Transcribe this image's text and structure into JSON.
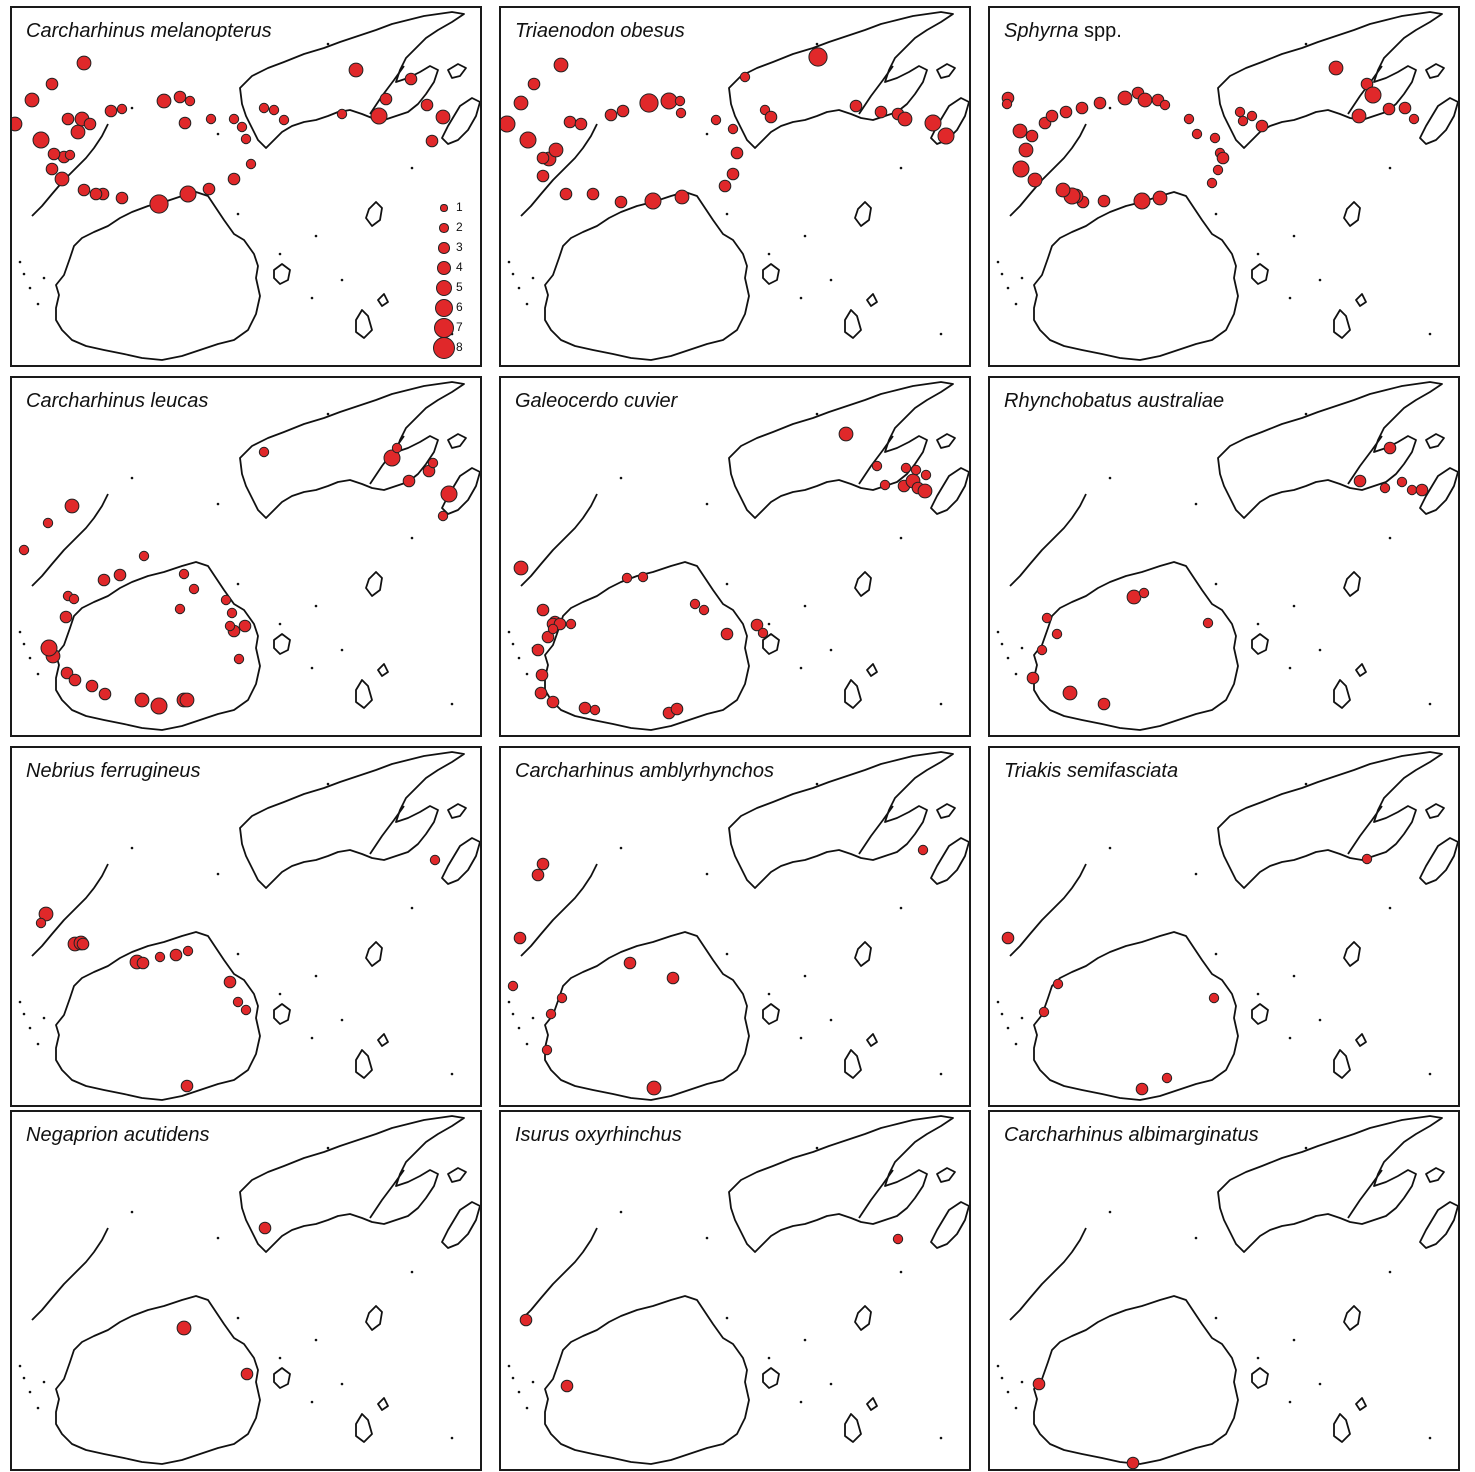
{
  "colors": {
    "dot_fill": "#e0282a",
    "dot_stroke": "#222222",
    "outline": "#111111",
    "frame": "#1a1a1a"
  },
  "legend": {
    "labels": [
      "1",
      "2",
      "3",
      "4",
      "5",
      "6",
      "7",
      "8"
    ]
  },
  "panels": [
    {
      "species": "Carcharhinus melanopterus",
      "suffix": "",
      "legend": true,
      "points": [
        [
          72,
          55,
          4
        ],
        [
          40,
          76,
          3
        ],
        [
          20,
          92,
          4
        ],
        [
          3,
          116,
          4
        ],
        [
          29,
          132,
          5
        ],
        [
          52,
          149,
          3
        ],
        [
          58,
          147,
          2
        ],
        [
          66,
          124,
          4
        ],
        [
          70,
          111,
          4
        ],
        [
          56,
          111,
          3
        ],
        [
          78,
          116,
          3
        ],
        [
          99,
          103,
          3
        ],
        [
          110,
          101,
          2
        ],
        [
          152,
          93,
          4
        ],
        [
          168,
          89,
          3
        ],
        [
          178,
          93,
          2
        ],
        [
          173,
          115,
          3
        ],
        [
          199,
          111,
          2
        ],
        [
          222,
          111,
          2
        ],
        [
          230,
          119,
          2
        ],
        [
          234,
          131,
          2
        ],
        [
          239,
          156,
          2
        ],
        [
          222,
          171,
          3
        ],
        [
          197,
          181,
          3
        ],
        [
          176,
          186,
          5
        ],
        [
          147,
          196,
          6
        ],
        [
          110,
          190,
          3
        ],
        [
          91,
          186,
          3
        ],
        [
          84,
          186,
          3
        ],
        [
          72,
          182,
          3
        ],
        [
          50,
          171,
          4
        ],
        [
          40,
          161,
          3
        ],
        [
          42,
          146,
          3
        ],
        [
          344,
          62,
          4
        ],
        [
          367,
          108,
          5
        ],
        [
          374,
          91,
          3
        ],
        [
          399,
          71,
          3
        ],
        [
          415,
          97,
          3
        ],
        [
          431,
          109,
          4
        ],
        [
          420,
          133,
          3
        ],
        [
          252,
          100,
          2
        ],
        [
          330,
          106,
          2
        ],
        [
          262,
          102,
          2
        ],
        [
          272,
          112,
          2
        ]
      ]
    },
    {
      "species": "Triaenodon obesus",
      "suffix": "",
      "legend": false,
      "points": [
        [
          60,
          57,
          4
        ],
        [
          33,
          76,
          3
        ],
        [
          20,
          95,
          4
        ],
        [
          6,
          116,
          5
        ],
        [
          27,
          132,
          5
        ],
        [
          48,
          151,
          4
        ],
        [
          55,
          142,
          4
        ],
        [
          69,
          114,
          3
        ],
        [
          80,
          116,
          3
        ],
        [
          110,
          107,
          3
        ],
        [
          122,
          103,
          3
        ],
        [
          148,
          95,
          6
        ],
        [
          168,
          93,
          5
        ],
        [
          179,
          93,
          2
        ],
        [
          180,
          105,
          2
        ],
        [
          215,
          112,
          2
        ],
        [
          232,
          121,
          2
        ],
        [
          236,
          145,
          3
        ],
        [
          232,
          166,
          3
        ],
        [
          224,
          178,
          3
        ],
        [
          181,
          189,
          4
        ],
        [
          152,
          193,
          5
        ],
        [
          120,
          194,
          3
        ],
        [
          92,
          186,
          3
        ],
        [
          65,
          186,
          3
        ],
        [
          42,
          168,
          3
        ],
        [
          42,
          150,
          3
        ],
        [
          317,
          49,
          6
        ],
        [
          355,
          98,
          3
        ],
        [
          380,
          104,
          3
        ],
        [
          397,
          106,
          3
        ],
        [
          404,
          111,
          4
        ],
        [
          432,
          115,
          5
        ],
        [
          445,
          128,
          5
        ],
        [
          264,
          102,
          2
        ],
        [
          270,
          109,
          3
        ],
        [
          244,
          69,
          2
        ]
      ]
    },
    {
      "species": "Sphyrna",
      "suffix": "spp.",
      "legend": false,
      "points": [
        [
          18,
          90,
          3
        ],
        [
          30,
          123,
          4
        ],
        [
          36,
          142,
          4
        ],
        [
          42,
          128,
          3
        ],
        [
          55,
          115,
          3
        ],
        [
          62,
          108,
          3
        ],
        [
          76,
          104,
          3
        ],
        [
          92,
          100,
          3
        ],
        [
          110,
          95,
          3
        ],
        [
          135,
          90,
          4
        ],
        [
          148,
          85,
          3
        ],
        [
          155,
          92,
          4
        ],
        [
          168,
          92,
          3
        ],
        [
          175,
          97,
          2
        ],
        [
          199,
          111,
          2
        ],
        [
          207,
          126,
          2
        ],
        [
          225,
          130,
          2
        ],
        [
          230,
          145,
          2
        ],
        [
          228,
          162,
          2
        ],
        [
          222,
          175,
          2
        ],
        [
          170,
          190,
          4
        ],
        [
          152,
          193,
          5
        ],
        [
          114,
          193,
          3
        ],
        [
          93,
          194,
          3
        ],
        [
          86,
          188,
          4
        ],
        [
          82,
          188,
          5
        ],
        [
          73,
          182,
          4
        ],
        [
          45,
          172,
          4
        ],
        [
          31,
          161,
          5
        ],
        [
          17,
          96,
          2
        ],
        [
          233,
          150,
          3
        ],
        [
          272,
          118,
          3
        ],
        [
          253,
          113,
          2
        ],
        [
          346,
          60,
          4
        ],
        [
          377,
          76,
          3
        ],
        [
          383,
          87,
          5
        ],
        [
          369,
          108,
          4
        ],
        [
          399,
          101,
          3
        ],
        [
          415,
          100,
          3
        ],
        [
          424,
          111,
          2
        ],
        [
          250,
          104,
          2
        ],
        [
          262,
          108,
          2
        ]
      ]
    },
    {
      "species": "Carcharhinus leucas",
      "suffix": "",
      "legend": false,
      "points": [
        [
          60,
          128,
          4
        ],
        [
          36,
          145,
          2
        ],
        [
          12,
          172,
          2
        ],
        [
          54,
          239,
          3
        ],
        [
          41,
          278,
          4
        ],
        [
          55,
          295,
          3
        ],
        [
          63,
          302,
          3
        ],
        [
          80,
          308,
          3
        ],
        [
          93,
          316,
          3
        ],
        [
          130,
          322,
          4
        ],
        [
          147,
          328,
          5
        ],
        [
          172,
          322,
          4
        ],
        [
          175,
          322,
          4
        ],
        [
          227,
          281,
          2
        ],
        [
          222,
          253,
          3
        ],
        [
          220,
          235,
          2
        ],
        [
          214,
          222,
          2
        ],
        [
          182,
          211,
          2
        ],
        [
          168,
          231,
          2
        ],
        [
          172,
          196,
          2
        ],
        [
          132,
          178,
          2
        ],
        [
          108,
          197,
          3
        ],
        [
          92,
          202,
          3
        ],
        [
          56,
          218,
          2
        ],
        [
          62,
          221,
          2
        ],
        [
          37,
          270,
          5
        ],
        [
          252,
          74,
          2
        ],
        [
          380,
          80,
          5
        ],
        [
          417,
          93,
          3
        ],
        [
          397,
          103,
          3
        ],
        [
          437,
          116,
          5
        ],
        [
          431,
          138,
          2
        ],
        [
          385,
          70,
          2
        ],
        [
          421,
          85,
          2
        ],
        [
          233,
          248,
          3
        ],
        [
          218,
          248,
          2
        ]
      ]
    },
    {
      "species": "Galeocerdo cuvier",
      "suffix": "",
      "legend": false,
      "points": [
        [
          20,
          190,
          4
        ],
        [
          42,
          232,
          3
        ],
        [
          54,
          244,
          3
        ],
        [
          52,
          246,
          3
        ],
        [
          59,
          246,
          3
        ],
        [
          47,
          259,
          3
        ],
        [
          70,
          246,
          2
        ],
        [
          126,
          200,
          2
        ],
        [
          142,
          199,
          2
        ],
        [
          41,
          297,
          3
        ],
        [
          40,
          315,
          3
        ],
        [
          52,
          324,
          3
        ],
        [
          84,
          330,
          3
        ],
        [
          94,
          332,
          2
        ],
        [
          168,
          335,
          3
        ],
        [
          176,
          331,
          3
        ],
        [
          194,
          226,
          2
        ],
        [
          203,
          232,
          2
        ],
        [
          226,
          256,
          3
        ],
        [
          256,
          247,
          3
        ],
        [
          262,
          255,
          2
        ],
        [
          345,
          56,
          4
        ],
        [
          376,
          88,
          2
        ],
        [
          384,
          107,
          2
        ],
        [
          403,
          108,
          3
        ],
        [
          412,
          103,
          4
        ],
        [
          417,
          110,
          3
        ],
        [
          424,
          113,
          4
        ],
        [
          405,
          90,
          2
        ],
        [
          425,
          97,
          2
        ],
        [
          415,
          92,
          2
        ],
        [
          52,
          251,
          2
        ],
        [
          37,
          272,
          3
        ]
      ]
    },
    {
      "species": "Rhynchobatus australiae",
      "suffix": "",
      "legend": false,
      "points": [
        [
          144,
          219,
          4
        ],
        [
          154,
          215,
          2
        ],
        [
          57,
          240,
          2
        ],
        [
          67,
          256,
          2
        ],
        [
          52,
          272,
          2
        ],
        [
          43,
          300,
          3
        ],
        [
          80,
          315,
          4
        ],
        [
          114,
          326,
          3
        ],
        [
          218,
          245,
          2
        ],
        [
          400,
          70,
          3
        ],
        [
          370,
          103,
          3
        ],
        [
          395,
          110,
          2
        ],
        [
          412,
          104,
          2
        ],
        [
          422,
          112,
          2
        ],
        [
          432,
          112,
          3
        ]
      ]
    },
    {
      "species": "Nebrius ferrugineus",
      "suffix": "",
      "legend": false,
      "points": [
        [
          34,
          166,
          4
        ],
        [
          29,
          175,
          2
        ],
        [
          63,
          196,
          4
        ],
        [
          69,
          195,
          4
        ],
        [
          71,
          196,
          3
        ],
        [
          125,
          214,
          4
        ],
        [
          131,
          215,
          3
        ],
        [
          148,
          209,
          2
        ],
        [
          164,
          207,
          3
        ],
        [
          176,
          203,
          2
        ],
        [
          218,
          234,
          3
        ],
        [
          226,
          254,
          2
        ],
        [
          234,
          262,
          2
        ],
        [
          175,
          338,
          3
        ],
        [
          423,
          112,
          2
        ]
      ]
    },
    {
      "species": "Carcharhinus amblyrhynchos",
      "suffix": "",
      "legend": false,
      "points": [
        [
          42,
          116,
          3
        ],
        [
          37,
          127,
          3
        ],
        [
          19,
          190,
          3
        ],
        [
          12,
          238,
          2
        ],
        [
          50,
          266,
          2
        ],
        [
          61,
          250,
          2
        ],
        [
          129,
          215,
          3
        ],
        [
          172,
          230,
          3
        ],
        [
          46,
          302,
          2
        ],
        [
          153,
          340,
          4
        ],
        [
          422,
          102,
          2
        ]
      ]
    },
    {
      "species": "Triakis semifasciata",
      "suffix": "",
      "legend": false,
      "points": [
        [
          18,
          190,
          3
        ],
        [
          68,
          236,
          2
        ],
        [
          54,
          264,
          2
        ],
        [
          152,
          341,
          3
        ],
        [
          177,
          330,
          2
        ],
        [
          224,
          250,
          2
        ],
        [
          377,
          111,
          2
        ]
      ]
    },
    {
      "species": "Negaprion acutidens",
      "suffix": "",
      "legend": false,
      "points": [
        [
          253,
          116,
          3
        ],
        [
          172,
          216,
          4
        ],
        [
          235,
          262,
          3
        ]
      ]
    },
    {
      "species": "Isurus oxyrhinchus",
      "suffix": "",
      "legend": false,
      "points": [
        [
          25,
          208,
          3
        ],
        [
          66,
          274,
          3
        ],
        [
          397,
          127,
          2
        ]
      ]
    },
    {
      "species": "Carcharhinus albimarginatus",
      "suffix": "",
      "legend": false,
      "points": [
        [
          49,
          272,
          3
        ],
        [
          143,
          351,
          3
        ]
      ]
    }
  ]
}
